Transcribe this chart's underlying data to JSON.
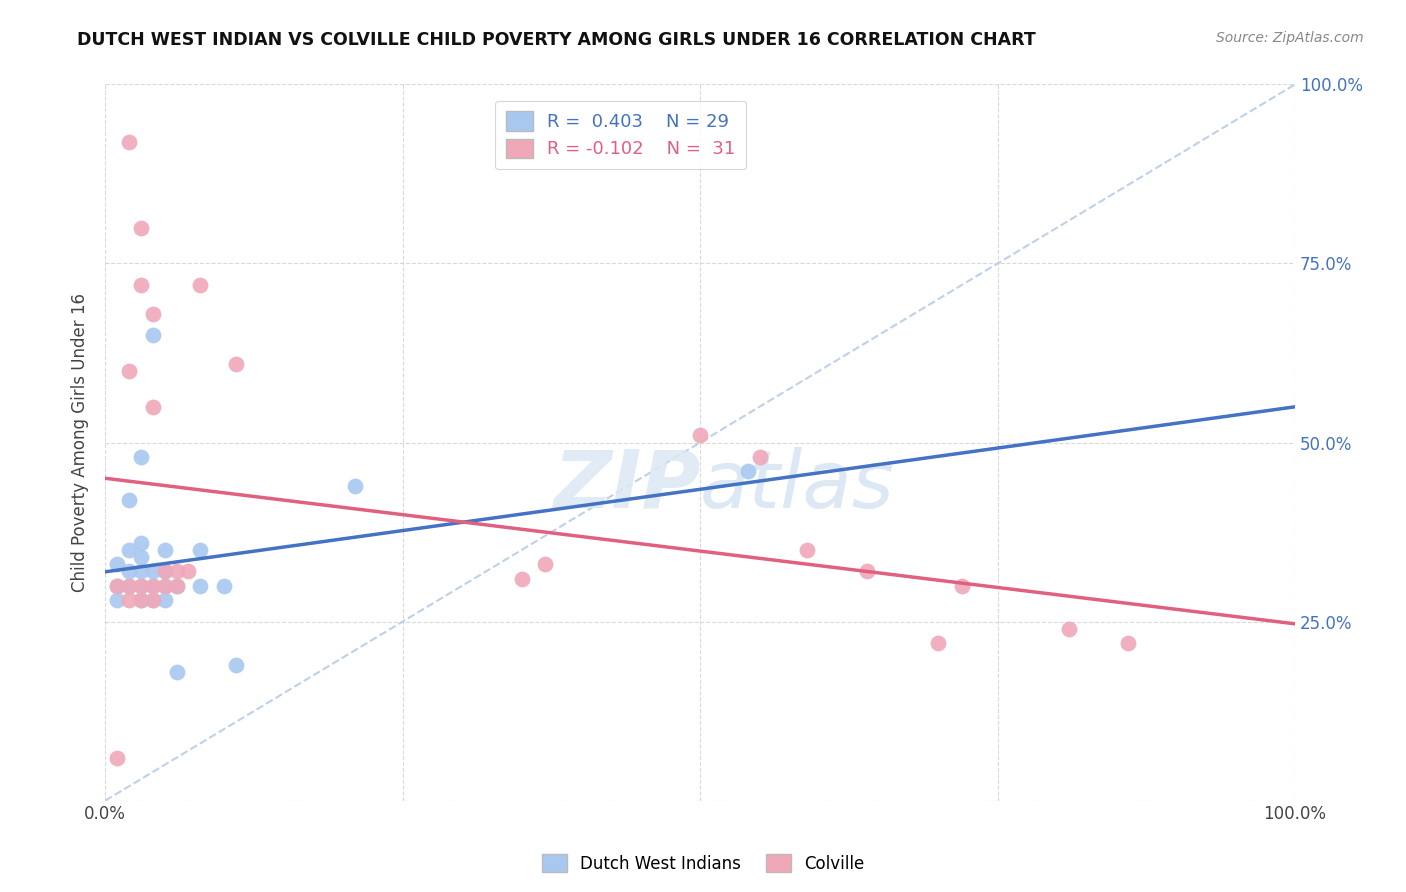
{
  "title": "DUTCH WEST INDIAN VS COLVILLE CHILD POVERTY AMONG GIRLS UNDER 16 CORRELATION CHART",
  "source": "Source: ZipAtlas.com",
  "ylabel": "Child Poverty Among Girls Under 16",
  "background_color": "#ffffff",
  "grid_color": "#d0d0d0",
  "blue_color": "#a8c8f0",
  "pink_color": "#f0a8b8",
  "blue_line_color": "#4472c4",
  "pink_line_color": "#e06080",
  "diagonal_color": "#b8cce4",
  "legend_R_blue": "0.403",
  "legend_N_blue": "29",
  "legend_R_pink": "-0.102",
  "legend_N_pink": "31",
  "blue_x": [
    0.01,
    0.01,
    0.01,
    0.02,
    0.02,
    0.02,
    0.02,
    0.03,
    0.03,
    0.03,
    0.03,
    0.03,
    0.03,
    0.04,
    0.04,
    0.04,
    0.04,
    0.05,
    0.05,
    0.05,
    0.05,
    0.06,
    0.06,
    0.08,
    0.08,
    0.1,
    0.11,
    0.21,
    0.54
  ],
  "blue_y": [
    0.28,
    0.3,
    0.33,
    0.3,
    0.32,
    0.35,
    0.42,
    0.28,
    0.3,
    0.32,
    0.34,
    0.36,
    0.48,
    0.28,
    0.3,
    0.32,
    0.65,
    0.28,
    0.3,
    0.32,
    0.35,
    0.18,
    0.3,
    0.3,
    0.35,
    0.3,
    0.19,
    0.44,
    0.46
  ],
  "pink_x": [
    0.01,
    0.01,
    0.02,
    0.02,
    0.02,
    0.02,
    0.03,
    0.03,
    0.03,
    0.03,
    0.04,
    0.04,
    0.04,
    0.04,
    0.05,
    0.05,
    0.06,
    0.06,
    0.07,
    0.08,
    0.11,
    0.35,
    0.37,
    0.5,
    0.55,
    0.59,
    0.64,
    0.7,
    0.72,
    0.81,
    0.86
  ],
  "pink_y": [
    0.06,
    0.3,
    0.28,
    0.3,
    0.6,
    0.92,
    0.28,
    0.3,
    0.72,
    0.8,
    0.28,
    0.3,
    0.55,
    0.68,
    0.3,
    0.32,
    0.3,
    0.32,
    0.32,
    0.72,
    0.61,
    0.31,
    0.33,
    0.51,
    0.48,
    0.35,
    0.32,
    0.22,
    0.3,
    0.24,
    0.22
  ],
  "xlim": [
    0,
    1.0
  ],
  "ylim": [
    0,
    1.0
  ],
  "xticks": [
    0,
    0.25,
    0.5,
    0.75,
    1.0
  ],
  "yticks": [
    0,
    0.25,
    0.5,
    0.75,
    1.0
  ],
  "xticklabels": [
    "0.0%",
    "",
    "",
    "",
    "100.0%"
  ],
  "right_yticklabels": [
    "",
    "25.0%",
    "50.0%",
    "75.0%",
    "100.0%"
  ]
}
